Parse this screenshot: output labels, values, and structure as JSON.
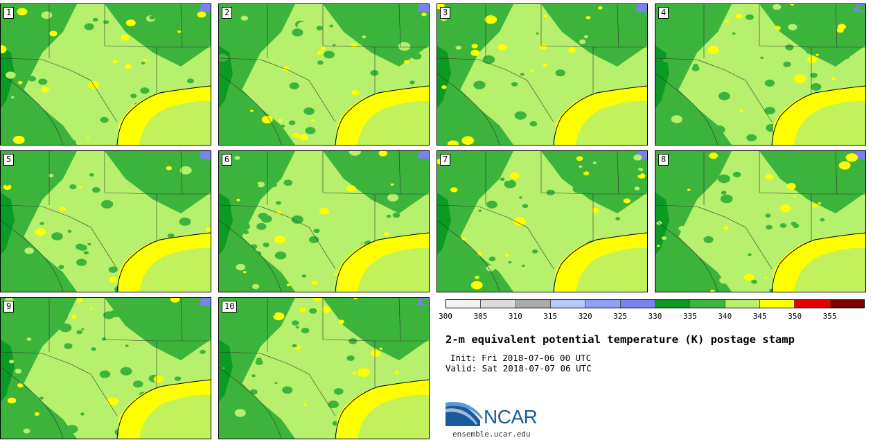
{
  "panels": [
    {
      "label": "1"
    },
    {
      "label": "2"
    },
    {
      "label": "3"
    },
    {
      "label": "4"
    },
    {
      "label": "5"
    },
    {
      "label": "6"
    },
    {
      "label": "7"
    },
    {
      "label": "8"
    },
    {
      "label": "9"
    },
    {
      "label": "10"
    }
  ],
  "colorbar": {
    "colors": [
      "#f2f2f2",
      "#dcdcdc",
      "#aaaaaa",
      "#b4c8fa",
      "#8ca0f5",
      "#7882f0",
      "#0a9b23",
      "#3cb43c",
      "#b6f06c",
      "#ffff00",
      "#e60000",
      "#7d0000"
    ],
    "ticks": [
      "300",
      "305",
      "310",
      "315",
      "320",
      "325",
      "330",
      "335",
      "340",
      "345",
      "350",
      "355"
    ]
  },
  "info": {
    "title": "2-m equivalent potential temperature (K) postage stamp",
    "init": "Init: Fri 2018-07-06 00 UTC",
    "valid": "Valid: Sat 2018-07-07 06 UTC",
    "logo_text": "NCAR",
    "url": "ensemble.ucar.edu"
  }
}
